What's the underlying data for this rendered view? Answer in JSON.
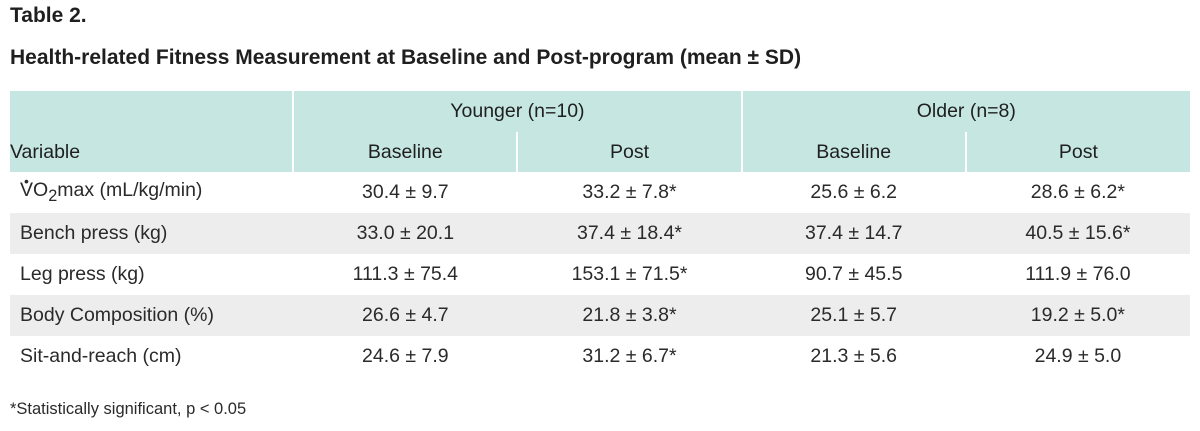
{
  "table_label": "Table 2.",
  "caption": "Health-related Fitness Measurement at Baseline and Post-program (mean ± SD)",
  "header": {
    "groups": [
      "Younger (n=10)",
      "Older (n=8)"
    ],
    "variable_label": "Variable",
    "columns": [
      "Baseline",
      "Post",
      "Baseline",
      "Post"
    ]
  },
  "first_row_label": {
    "v": "V",
    "dot": "•",
    "o": "O",
    "sub": "2",
    "rest": "max (mL/kg/min)"
  },
  "rows": [
    {
      "label": "VO2max (mL/kg/min)",
      "values": [
        "30.4 ± 9.7",
        "33.2 ± 7.8*",
        "25.6 ± 6.2",
        "28.6 ± 6.2*"
      ]
    },
    {
      "label": "Bench press (kg)",
      "values": [
        "33.0 ± 20.1",
        "37.4 ± 18.4*",
        "37.4 ± 14.7",
        "40.5 ± 15.6*"
      ]
    },
    {
      "label": "Leg press (kg)",
      "values": [
        "111.3 ± 75.4",
        "153.1 ± 71.5*",
        "90.7 ± 45.5",
        "111.9 ± 76.0"
      ]
    },
    {
      "label": "Body Composition (%)",
      "values": [
        "26.6 ± 4.7",
        "21.8 ± 3.8*",
        "25.1 ± 5.7",
        "19.2 ± 5.0*"
      ]
    },
    {
      "label": "Sit-and-reach (cm)",
      "values": [
        "24.6 ± 7.9",
        "31.2 ± 6.7*",
        "21.3 ± 5.6",
        "24.9 ± 5.0"
      ]
    }
  ],
  "footnote": "*Statistically significant, p < 0.05",
  "colors": {
    "header_bg": "#c5e6e1",
    "stripe_bg": "#ededed"
  }
}
